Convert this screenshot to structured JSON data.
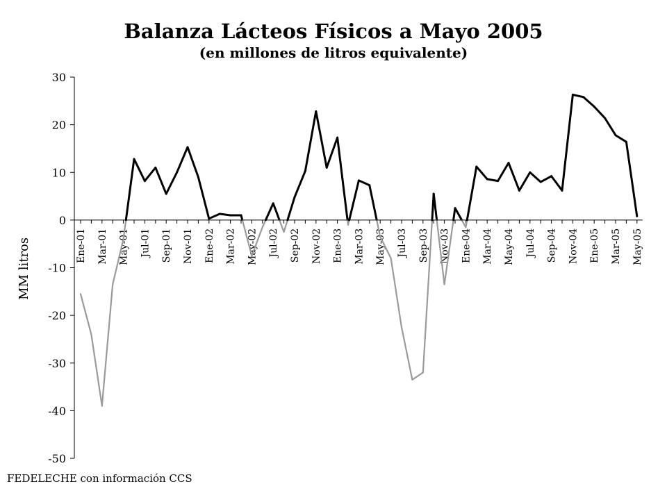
{
  "title": "Balanza Lácteos Físicos a Mayo 2005",
  "subtitle": "(en millones de litros equivalente)",
  "source": "FEDELECHE con información CCS",
  "chart_data": {
    "type": "line",
    "ylabel": "MM litros",
    "ylim": [
      -50,
      30
    ],
    "yticks": [
      30,
      20,
      10,
      0,
      -10,
      -20,
      -30,
      -40,
      -50
    ],
    "ytick_labels": [
      "30",
      "20",
      "10",
      "0",
      "-10",
      "-20",
      "-30",
      "-40",
      "-50"
    ],
    "grid": false,
    "legend": "none",
    "positive_color": "#000000",
    "negative_color": "#9a9a9a",
    "x": [
      "Ene-01",
      "Feb-01",
      "Mar-01",
      "Abr-01",
      "May-01",
      "Jun-01",
      "Jul-01",
      "Ago-01",
      "Sep-01",
      "Oct-01",
      "Nov-01",
      "Dic-01",
      "Ene-02",
      "Feb-02",
      "Mar-02",
      "Abr-02",
      "May-02",
      "Jun-02",
      "Jul-02",
      "Ago-02",
      "Sep-02",
      "Oct-02",
      "Nov-02",
      "Dic-02",
      "Ene-03",
      "Feb-03",
      "Mar-03",
      "Abr-03",
      "May-03",
      "Jun-03",
      "Jul-03",
      "Ago-03",
      "Sep-03",
      "Oct-03",
      "Nov-03",
      "Dic-03",
      "Ene-04",
      "Feb-04",
      "Mar-04",
      "Abr-04",
      "May-04",
      "Jun-04",
      "Jul-04",
      "Ago-04",
      "Sep-04",
      "Oct-04",
      "Nov-04",
      "Dic-04",
      "Ene-05",
      "Feb-05",
      "Mar-05",
      "Abr-05",
      "May-05"
    ],
    "x_tick_labels": [
      "Ene-01",
      "Mar-01",
      "May-01",
      "Jul-01",
      "Sep-01",
      "Nov-01",
      "Ene-02",
      "Mar-02",
      "May-02",
      "Jul-02",
      "Sep-02",
      "Nov-02",
      "Ene-03",
      "Mar-03",
      "May-03",
      "Jul-03",
      "Sep-03",
      "Nov-03",
      "Ene-04",
      "Mar-04",
      "May-04",
      "Jul-04",
      "Sep-04",
      "Nov-04",
      "Ene-05",
      "Mar-05",
      "May-05"
    ],
    "series": [
      {
        "values": [
          -15.5,
          -24,
          -39,
          -13.5,
          -4,
          12.8,
          8.2,
          11,
          5.5,
          10,
          15.3,
          9,
          0.3,
          1.3,
          1,
          1,
          -7.5,
          -1.5,
          3.5,
          -2.5,
          4.8,
          10.3,
          22.8,
          11,
          17.3,
          -1,
          8.3,
          7.3,
          -3.5,
          -8,
          -22.5,
          -33.5,
          -32,
          5.5,
          -13.5,
          2.5,
          -1.5,
          11.2,
          8.6,
          8.2,
          12,
          6.2,
          10,
          8,
          9.2,
          6.2,
          26.3,
          25.8,
          23.8,
          21.4,
          17.8,
          16.4,
          0.8
        ]
      }
    ]
  }
}
